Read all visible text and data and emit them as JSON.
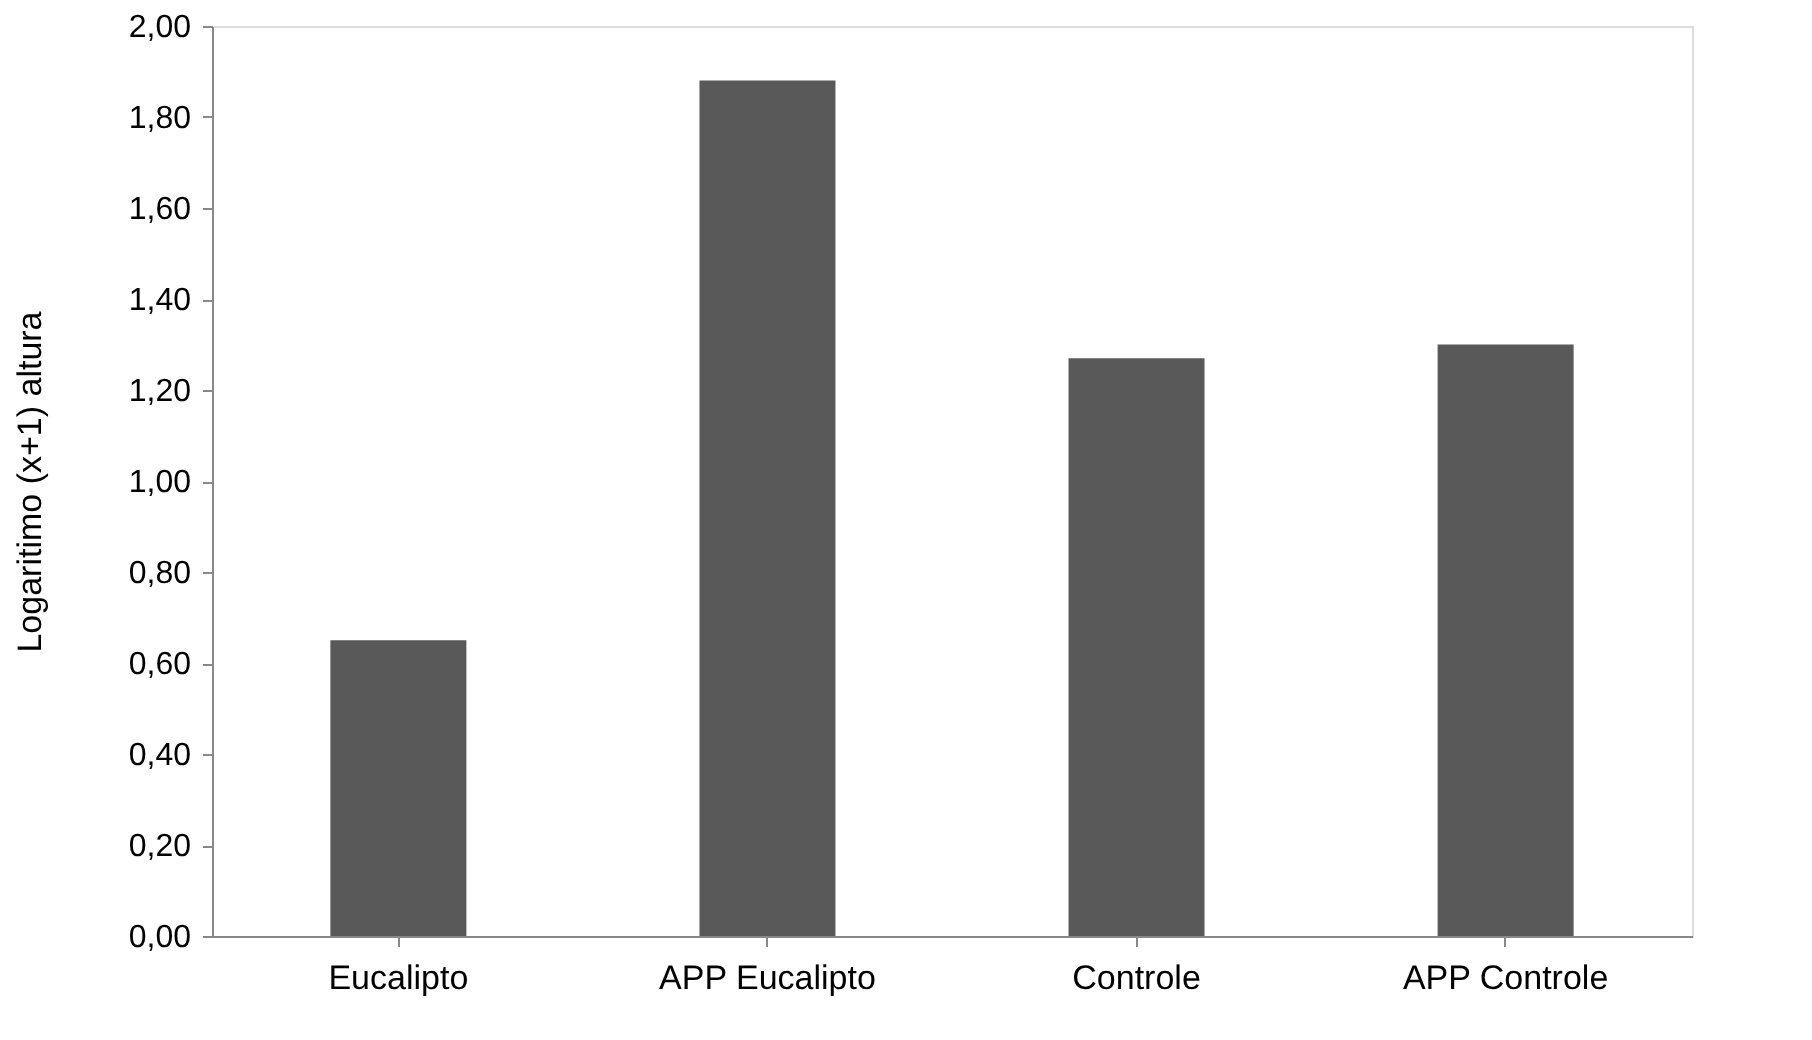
{
  "chart_data": {
    "type": "bar",
    "ylabel": "Logaritimo (x+1) altura",
    "categories": [
      "Eucalipto",
      "APP Eucalipto",
      "Controle",
      "APP Controle"
    ],
    "values": [
      0.65,
      1.88,
      1.27,
      1.3
    ],
    "color": "#595959",
    "ylim": [
      0,
      2
    ],
    "yticks": [
      {
        "value": 0,
        "label": "0,00"
      },
      {
        "value": 0.2,
        "label": "0,20"
      },
      {
        "value": 0.4,
        "label": "0,40"
      },
      {
        "value": 0.6,
        "label": "0,60"
      },
      {
        "value": 0.8,
        "label": "0,80"
      },
      {
        "value": 1.0,
        "label": "1,00"
      },
      {
        "value": 1.2,
        "label": "1,20"
      },
      {
        "value": 1.4,
        "label": "1,40"
      },
      {
        "value": 1.6,
        "label": "1,60"
      },
      {
        "value": 1.8,
        "label": "1,80"
      },
      {
        "value": 2.0,
        "label": "2,00"
      }
    ],
    "grid": false
  }
}
